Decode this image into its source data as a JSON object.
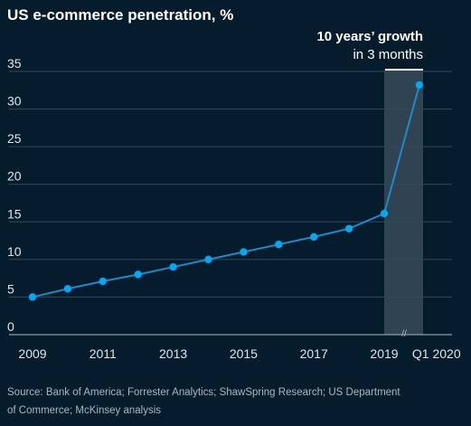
{
  "chart_data": {
    "type": "line",
    "title": "US e-commerce penetration, %",
    "xlabel": "",
    "ylabel": "",
    "x": [
      "2009",
      "2010",
      "2011",
      "2012",
      "2013",
      "2014",
      "2015",
      "2016",
      "2017",
      "2018",
      "2019",
      "Q1 2020"
    ],
    "x_tick_labels": [
      "2009",
      "2011",
      "2013",
      "2015",
      "2017",
      "2019",
      "Q1 2020"
    ],
    "series": [
      {
        "values": [
          5.0,
          6.1,
          7.1,
          8.0,
          9.0,
          10.0,
          11.0,
          12.0,
          13.0,
          14.1,
          16.1,
          33.2
        ]
      }
    ],
    "ylim": [
      0,
      35
    ],
    "y_ticks": [
      0,
      5,
      10,
      15,
      20,
      25,
      30,
      35
    ],
    "grid": true,
    "highlight": {
      "from": "2019",
      "to": "Q1 2020",
      "annotation_line1": "10 years’ growth",
      "annotation_line2": "in 3 months"
    },
    "axis_break_mark": "//",
    "colors": {
      "background": "#051c2c",
      "line": "#1f8ac9",
      "marker": "#00a9f4",
      "grid": "#35495a",
      "highlight": "#2f4352"
    }
  },
  "source": {
    "line1": "Source: Bank of America; Forrester Analytics; ShawSpring Research; US Department",
    "line2": "of Commerce; McKinsey analysis"
  }
}
